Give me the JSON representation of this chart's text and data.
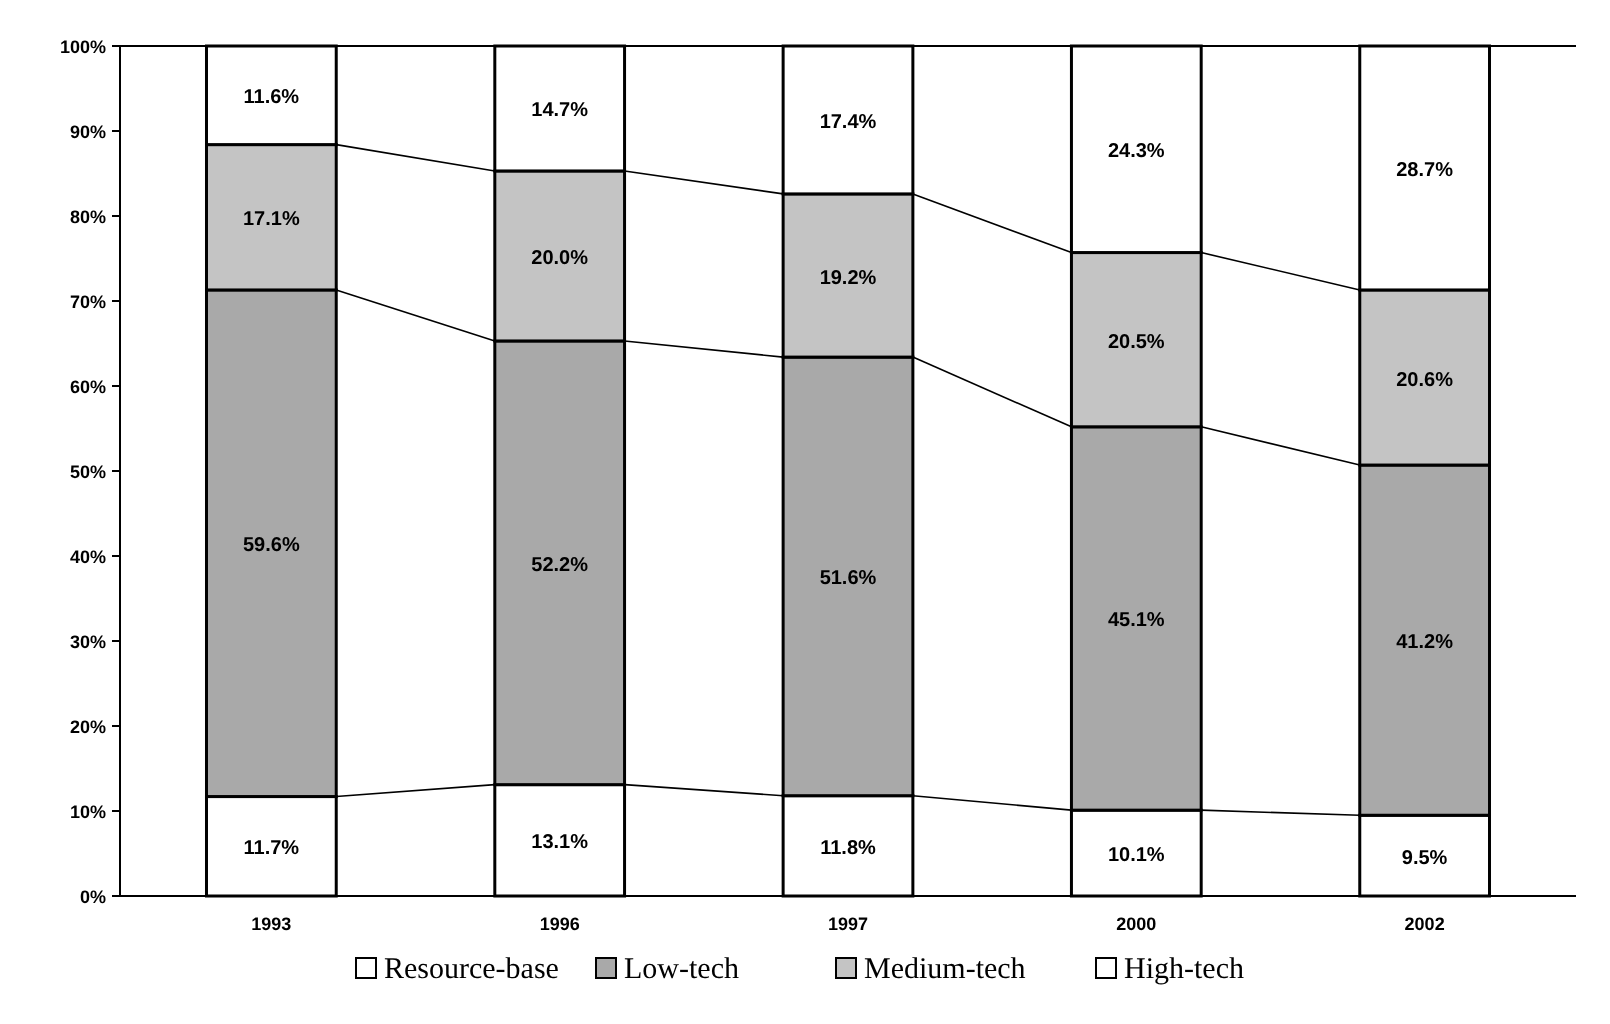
{
  "chart_data": {
    "type": "bar",
    "stacked": true,
    "categories": [
      "1993",
      "1996",
      "1997",
      "2000",
      "2002"
    ],
    "series": [
      {
        "name": "Resource-base",
        "color": "#ffffff",
        "values": [
          11.7,
          13.1,
          11.8,
          10.1,
          9.5
        ],
        "value_labels": [
          "11.7%",
          "13.1%",
          "11.8%",
          "10.1%",
          "9.5%"
        ]
      },
      {
        "name": "Low-tech",
        "color": "#a9a9a9",
        "values": [
          59.6,
          52.2,
          51.6,
          45.1,
          41.2
        ],
        "value_labels": [
          "59.6%",
          "52.2%",
          "51.6%",
          "45.1%",
          "41.2%"
        ]
      },
      {
        "name": "Medium-tech",
        "color": "#c4c4c4",
        "values": [
          17.1,
          20.0,
          19.2,
          20.5,
          20.6
        ],
        "value_labels": [
          "17.1%",
          "20.0%",
          "19.2%",
          "20.5%",
          "20.6%"
        ]
      },
      {
        "name": "High-tech",
        "color": "#ffffff",
        "values": [
          11.6,
          14.7,
          17.4,
          24.3,
          28.7
        ],
        "value_labels": [
          "11.6%",
          "14.7%",
          "17.4%",
          "24.3%",
          "28.7%"
        ]
      }
    ],
    "ylim": [
      0,
      100
    ],
    "yticks": [
      {
        "value": 0,
        "label": "0%"
      },
      {
        "value": 10,
        "label": "10%"
      },
      {
        "value": 20,
        "label": "20%"
      },
      {
        "value": 30,
        "label": "30%"
      },
      {
        "value": 40,
        "label": "40%"
      },
      {
        "value": 50,
        "label": "50%"
      },
      {
        "value": 60,
        "label": "60%"
      },
      {
        "value": 70,
        "label": "70%"
      },
      {
        "value": 80,
        "label": "80%"
      },
      {
        "value": 90,
        "label": "90%"
      },
      {
        "value": 100,
        "label": "100%"
      }
    ],
    "legend": "bottom"
  }
}
